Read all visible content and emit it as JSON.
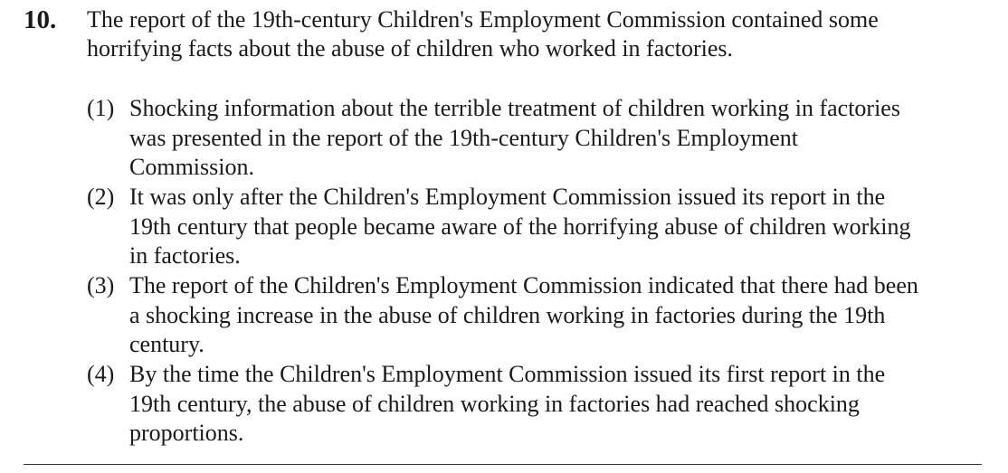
{
  "question": {
    "number": "10.",
    "stem": "The report of the 19th-century Children's Employment Commission contained some horrifying facts about the abuse of children who worked in factories."
  },
  "options": [
    {
      "number": "(1)",
      "lines": [
        "Shocking information about the terrible treatment of children working in factories",
        "was presented in the report of the 19th-century Children's Employment",
        "Commission."
      ]
    },
    {
      "number": "(2)",
      "lines": [
        "It was only after the Children's Employment Commission issued its report in the",
        "19th century that people became aware of the horrifying abuse of children working",
        "in factories."
      ]
    },
    {
      "number": "(3)",
      "lines": [
        "The report of the Children's Employment Commission indicated that there had been",
        "a shocking increase in the abuse of children working in factories during the 19th",
        "century."
      ]
    },
    {
      "number": "(4)",
      "lines": [
        "By the time the Children's Employment Commission issued its first report in the",
        "19th century, the abuse of children working in factories had reached shocking",
        "proportions."
      ]
    }
  ]
}
